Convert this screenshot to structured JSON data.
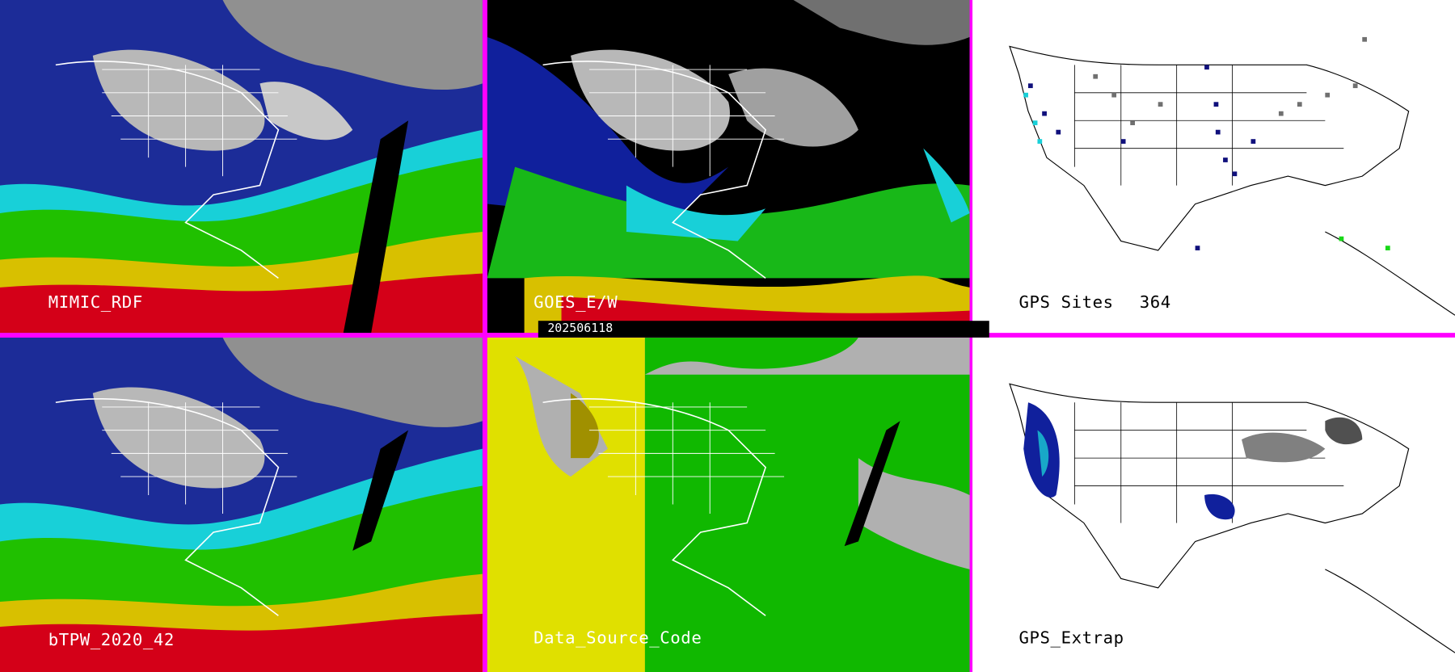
{
  "panels": {
    "top_left": {
      "label": "MIMIC_RDF"
    },
    "top_center": {
      "label": "GOES_E/W"
    },
    "top_right": {
      "label": "GPS Sites",
      "count": "364"
    },
    "bottom_left": {
      "label": "bTPW_2020_42"
    },
    "bottom_center": {
      "label": "Data_Source_Code"
    },
    "bottom_right": {
      "label": "GPS_Extrap"
    }
  },
  "timestamp": "202506118",
  "colors": {
    "divider": "#ff00ff",
    "ocean_red": "#d40018",
    "ocean_yellow": "#d8c000",
    "ocean_green": "#20c000",
    "ocean_cyan": "#18d0d8",
    "ocean_blue": "#1020a0",
    "cloud_gray": "#b8b8b8",
    "source_gray": "#b0b0b0",
    "source_yellow": "#e0e000",
    "source_green": "#10b800",
    "gps_navy": "#10107c",
    "gps_gray": "#707070"
  }
}
